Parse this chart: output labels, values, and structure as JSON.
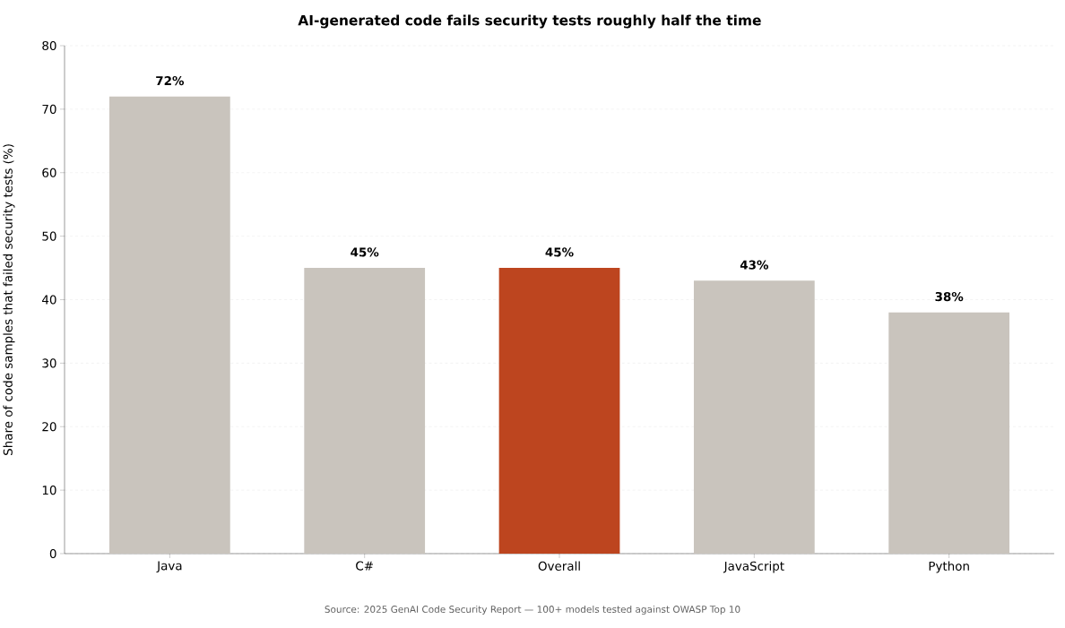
{
  "chart_data": {
    "type": "bar",
    "title": "AI-generated code fails security tests roughly half the time",
    "ylabel": "Share of code samples that failed security tests (%)",
    "categories": [
      "Java",
      "C#",
      "Overall",
      "JavaScript",
      "Python"
    ],
    "values": [
      72,
      45,
      45,
      43,
      38
    ],
    "colors": [
      "#c9c4bd",
      "#c9c4bd",
      "#bd451f",
      "#c9c4bd",
      "#c9c4bd"
    ],
    "value_labels": [
      "72%",
      "45%",
      "45%",
      "43%",
      "38%"
    ],
    "ylim": [
      0,
      80
    ],
    "yticks": [
      0,
      10,
      20,
      30,
      40,
      50,
      60,
      70,
      80
    ],
    "grid": "y",
    "annotations": [
      "Source: 2025 GenAI Code Security Report — 100+ models tested against OWASP Top 10"
    ]
  }
}
